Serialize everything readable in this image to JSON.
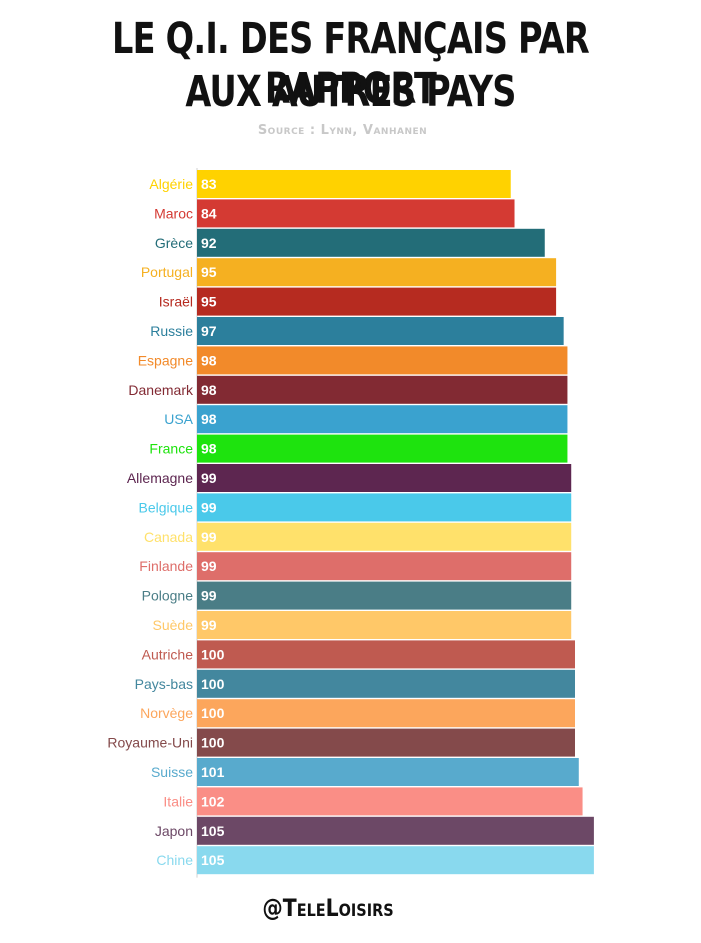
{
  "title_line1": "LE Q.I. DES FRANÇAIS PAR RAPPORT",
  "title_line2": "AUX AUTRES PAYS",
  "source": "Source : Lynn, Vanhanen",
  "footer": "@TeleLoisirs",
  "chart_data": {
    "type": "bar",
    "orientation": "horizontal",
    "categories": [
      "Algérie",
      "Maroc",
      "Grèce",
      "Portugal",
      "Israël",
      "Russie",
      "Espagne",
      "Danemark",
      "USA",
      "France",
      "Allemagne",
      "Belgique",
      "Canada",
      "Finlande",
      "Pologne",
      "Suède",
      "Autriche",
      "Pays-bas",
      "Norvège",
      "Royaume-Uni",
      "Suisse",
      "Italie",
      "Japon",
      "Chine"
    ],
    "values": [
      83,
      84,
      92,
      95,
      95,
      97,
      98,
      98,
      98,
      98,
      99,
      99,
      99,
      99,
      99,
      99,
      100,
      100,
      100,
      100,
      101,
      102,
      105,
      105
    ],
    "colors": [
      "#FFD200",
      "#D43A33",
      "#236D78",
      "#F5B021",
      "#B62B20",
      "#2C7F9C",
      "#F28A2A",
      "#822A33",
      "#3AA2CF",
      "#1EE30E",
      "#5D2650",
      "#4AC9EA",
      "#FFE16B",
      "#DE6E6A",
      "#4A7D86",
      "#FFC868",
      "#BF5A50",
      "#43879E",
      "#FCA65C",
      "#844A4B",
      "#58AACD",
      "#FA8E86",
      "#6C4866",
      "#89D9EE"
    ],
    "value_labels": [
      "83",
      "84",
      "92",
      "95",
      "95",
      "97",
      "98",
      "98",
      "98",
      "98",
      "99",
      "99",
      "99",
      "99",
      "99",
      "99",
      "100",
      "100",
      "100",
      "100",
      "101",
      "102",
      "105",
      "105"
    ],
    "grid": false,
    "legend": "none"
  }
}
